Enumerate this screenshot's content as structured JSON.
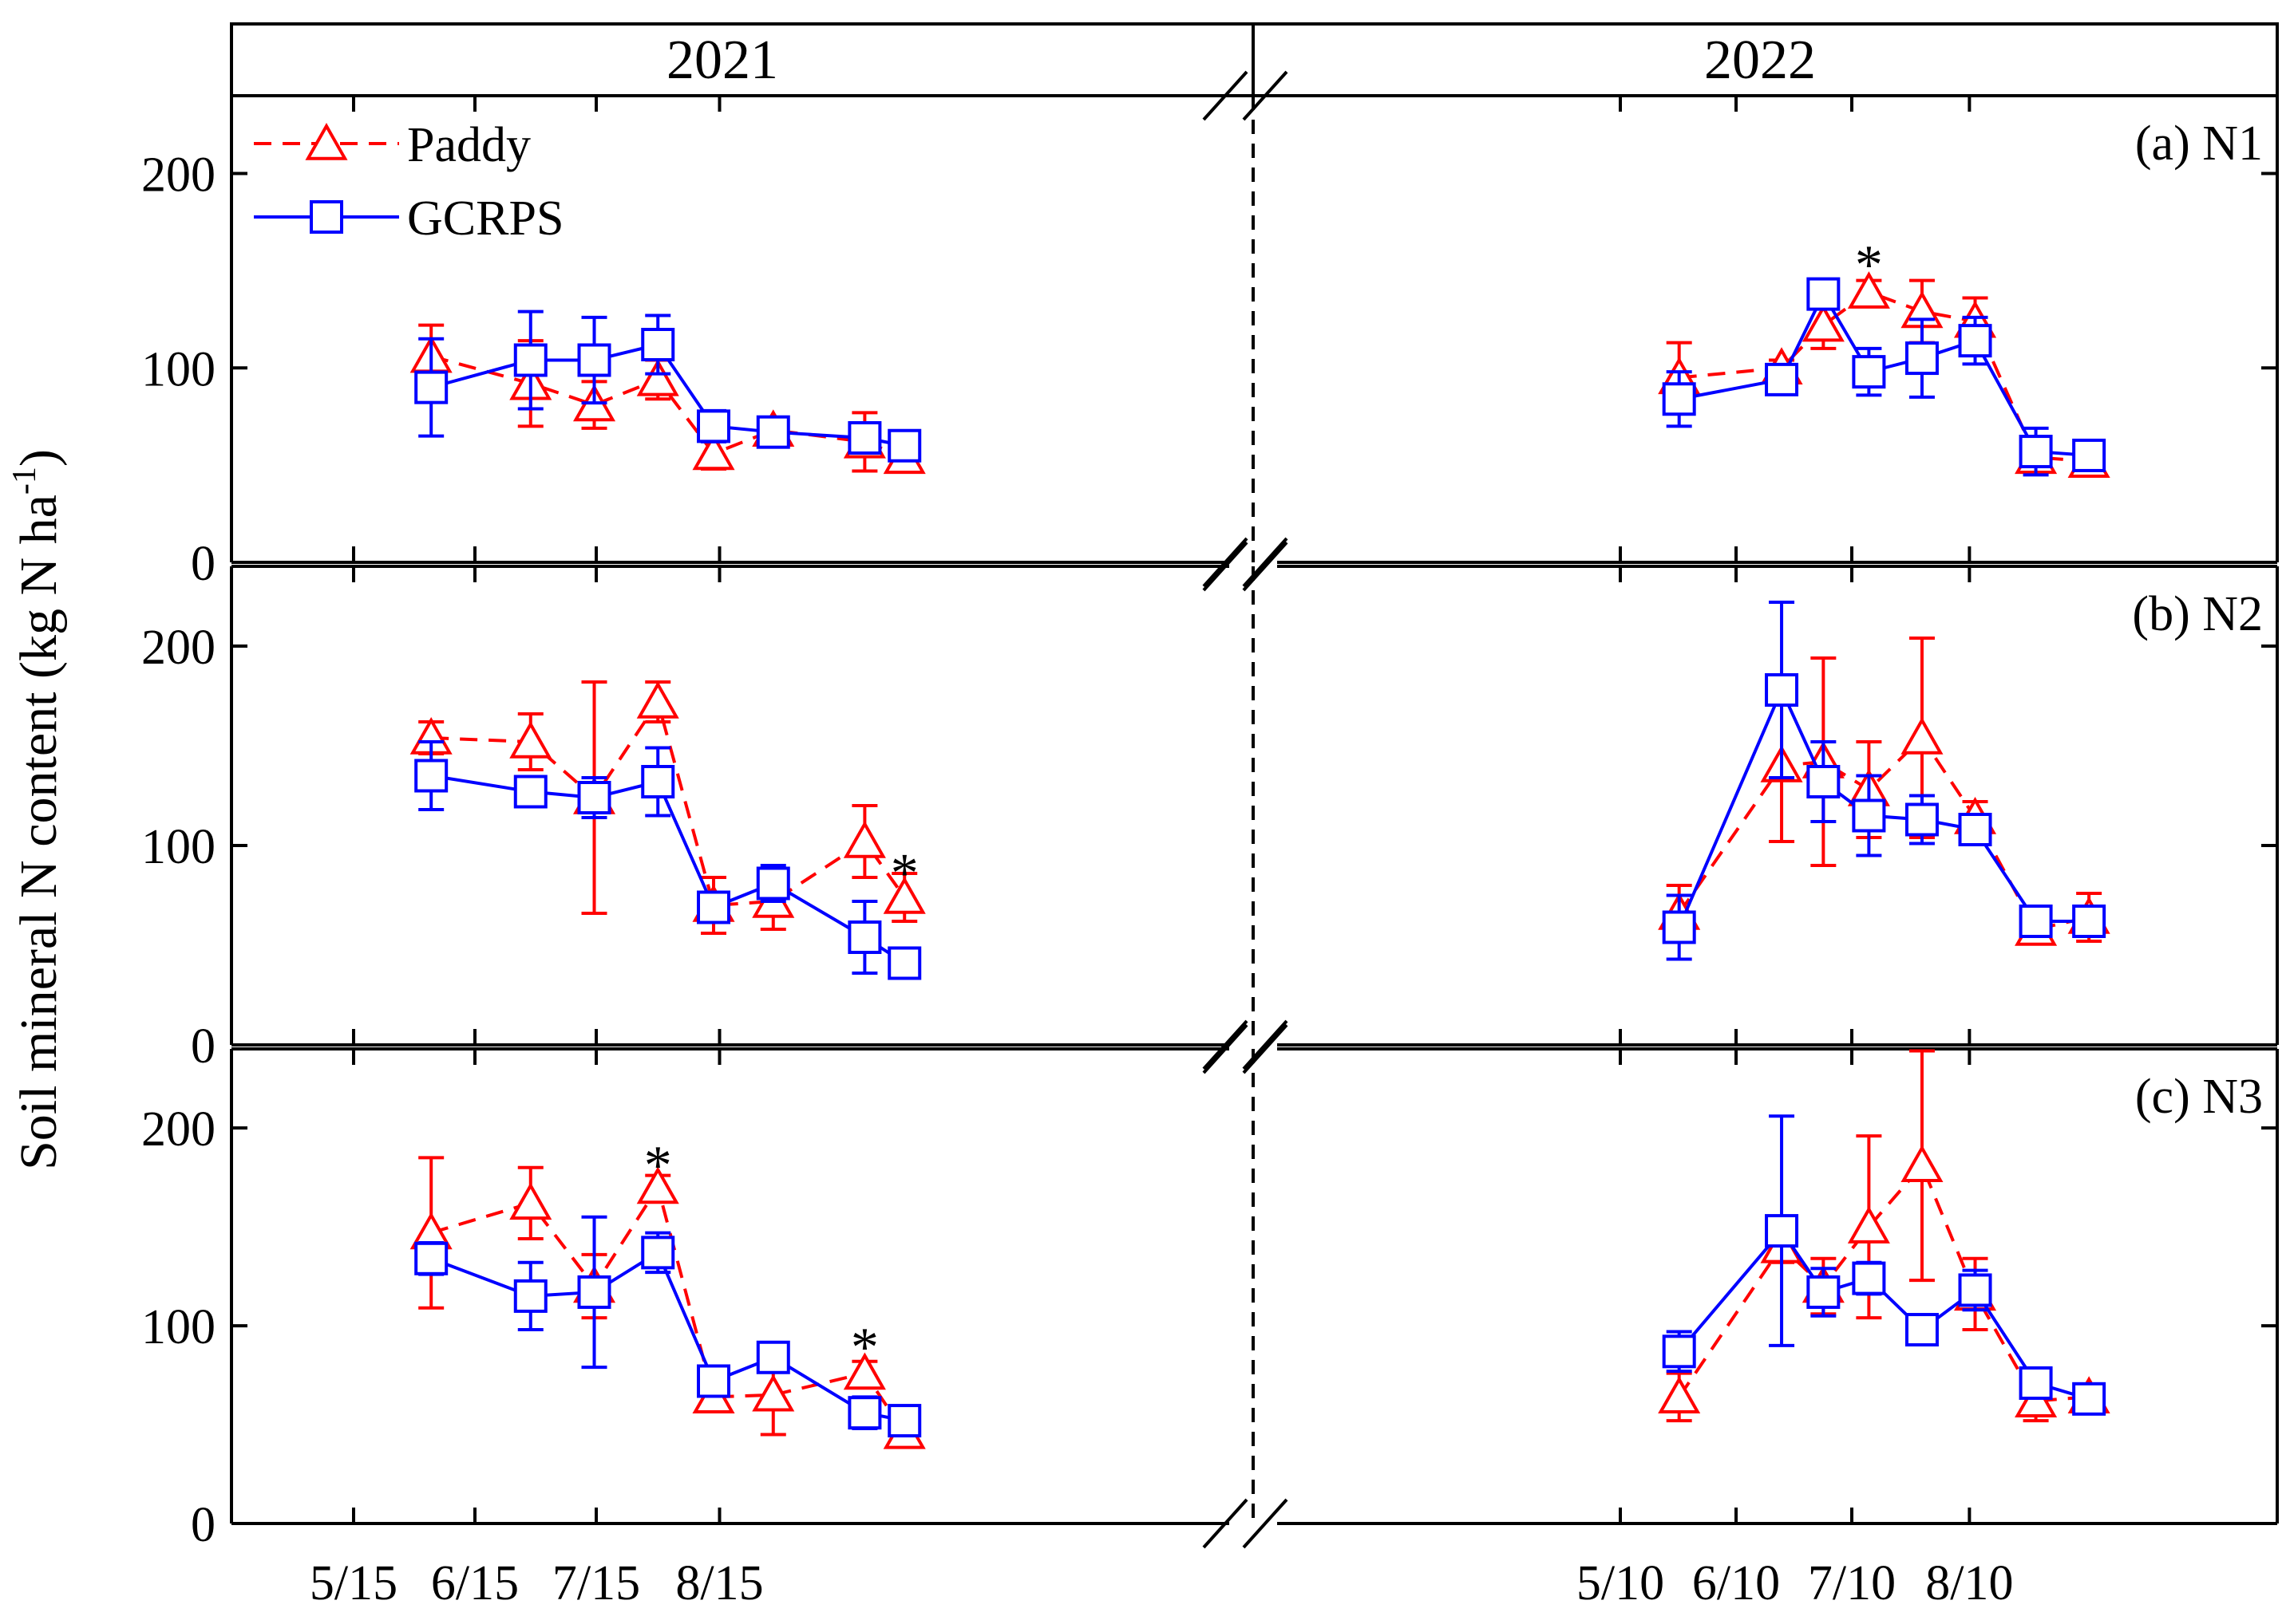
{
  "chart_data": {
    "type": "line",
    "ylabel": "Soil mineral N content (kg N ha",
    "ylabel_sup": "-1",
    "ylabel_close": ")",
    "ylim": [
      0,
      240
    ],
    "yticks": [
      0,
      100,
      200
    ],
    "years": [
      "2021",
      "2022"
    ],
    "legend": [
      {
        "name": "Paddy",
        "color": "#ff0000",
        "marker": "triangle",
        "dash": true
      },
      {
        "name": "GCRPS",
        "color": "#0000ff",
        "marker": "square",
        "dash": false
      }
    ],
    "colors": {
      "paddy": "#ff0000",
      "gcrps": "#0000ff"
    },
    "x_ticks_2021": [
      "5/15",
      "6/15",
      "7/15",
      "8/15"
    ],
    "x_ticks_2022": [
      "5/10",
      "6/10",
      "7/10",
      "8/10"
    ],
    "x_2021": [
      0,
      14,
      30,
      46,
      60,
      83,
      101,
      127,
      146,
      165,
      196,
      226,
      250
    ],
    "x_2022": [
      0,
      14,
      30,
      46,
      60,
      83,
      101,
      127,
      146,
      165,
      196,
      226,
      250
    ],
    "panels": [
      {
        "label": "(a) N1",
        "paddy_2021": {
          "x": [
            -11,
            14,
            30,
            46,
            60,
            75,
            98,
            108
          ],
          "y": [
            106,
            92,
            81,
            94,
            56,
            68,
            62,
            54
          ],
          "err": [
            16,
            22,
            12,
            10,
            8,
            6,
            15,
            5
          ]
        },
        "gcrps_2021": {
          "x": [
            -11,
            14,
            30,
            46,
            60,
            75,
            98,
            108
          ],
          "y": [
            90,
            104,
            104,
            112,
            70,
            67,
            64,
            60
          ],
          "err": [
            25,
            25,
            22,
            15,
            8,
            6,
            6,
            4
          ]
        },
        "paddy_2022": {
          "x": [
            -15,
            12,
            23,
            35,
            49,
            63,
            79,
            93
          ],
          "y": [
            95,
            100,
            122,
            139,
            129,
            124,
            54,
            52
          ],
          "err": [
            18,
            4,
            12,
            6,
            16,
            12,
            6,
            4
          ]
        },
        "gcrps_2022": {
          "x": [
            -15,
            12,
            23,
            35,
            49,
            63,
            79,
            93
          ],
          "y": [
            84,
            94,
            138,
            98,
            105,
            114,
            57,
            55
          ],
          "err": [
            14,
            6,
            4,
            12,
            20,
            12,
            12,
            4
          ]
        },
        "stars": [
          {
            "year": "2022",
            "x": 35,
            "y": 160,
            "text": "*"
          }
        ]
      },
      {
        "label": "(b) N2",
        "paddy_2021": {
          "x": [
            -11,
            14,
            30,
            46,
            60,
            75,
            98,
            108
          ],
          "y": [
            154,
            152,
            124,
            172,
            70,
            72,
            102,
            74
          ],
          "err": [
            8,
            14,
            58,
            10,
            14,
            14,
            18,
            12
          ]
        },
        "gcrps_2021": {
          "x": [
            -11,
            14,
            30,
            46,
            60,
            75,
            98,
            108
          ],
          "y": [
            135,
            127,
            124,
            132,
            69,
            81,
            54,
            41
          ],
          "err": [
            17,
            4,
            10,
            17,
            6,
            9,
            18,
            4
          ]
        },
        "paddy_2022": {
          "x": [
            -15,
            12,
            23,
            35,
            49,
            63,
            79,
            93
          ],
          "y": [
            66,
            140,
            142,
            128,
            154,
            114,
            58,
            64
          ],
          "err": [
            14,
            38,
            52,
            24,
            50,
            8,
            4,
            12
          ]
        },
        "gcrps_2022": {
          "x": [
            -15,
            12,
            23,
            35,
            49,
            63,
            79,
            93
          ],
          "y": [
            59,
            178,
            132,
            115,
            113,
            108,
            62,
            62
          ],
          "err": [
            16,
            44,
            20,
            20,
            12,
            4,
            4,
            4
          ]
        },
        "stars": [
          {
            "year": "2021",
            "x": 108,
            "y": 93,
            "text": "*"
          }
        ]
      },
      {
        "label": "(c) N3",
        "paddy_2021": {
          "x": [
            -11,
            14,
            30,
            46,
            60,
            75,
            98,
            108
          ],
          "y": [
            147,
            162,
            120,
            170,
            64,
            65,
            76,
            46
          ],
          "err": [
            38,
            18,
            16,
            6,
            6,
            20,
            6,
            4
          ]
        },
        "gcrps_2021": {
          "x": [
            -11,
            14,
            30,
            46,
            60,
            75,
            98,
            108
          ],
          "y": [
            134,
            115,
            117,
            137,
            72,
            84,
            56,
            52
          ],
          "err": [
            8,
            17,
            38,
            10,
            6,
            4,
            8,
            4
          ]
        },
        "paddy_2022": {
          "x": [
            -15,
            12,
            23,
            35,
            49,
            63,
            79,
            93
          ],
          "y": [
            64,
            140,
            120,
            150,
            181,
            116,
            62,
            64
          ],
          "err": [
            12,
            8,
            14,
            46,
            58,
            18,
            10,
            6
          ]
        },
        "gcrps_2022": {
          "x": [
            -15,
            12,
            23,
            35,
            49,
            63,
            79,
            93
          ],
          "y": [
            87,
            148,
            117,
            124,
            98,
            118,
            71,
            63
          ],
          "err": [
            10,
            58,
            12,
            8,
            4,
            10,
            4,
            4
          ]
        },
        "stars": [
          {
            "year": "2021",
            "x": 46,
            "y": 188,
            "text": "*"
          },
          {
            "year": "2021",
            "x": 98,
            "y": 96,
            "text": "*"
          }
        ]
      }
    ]
  }
}
